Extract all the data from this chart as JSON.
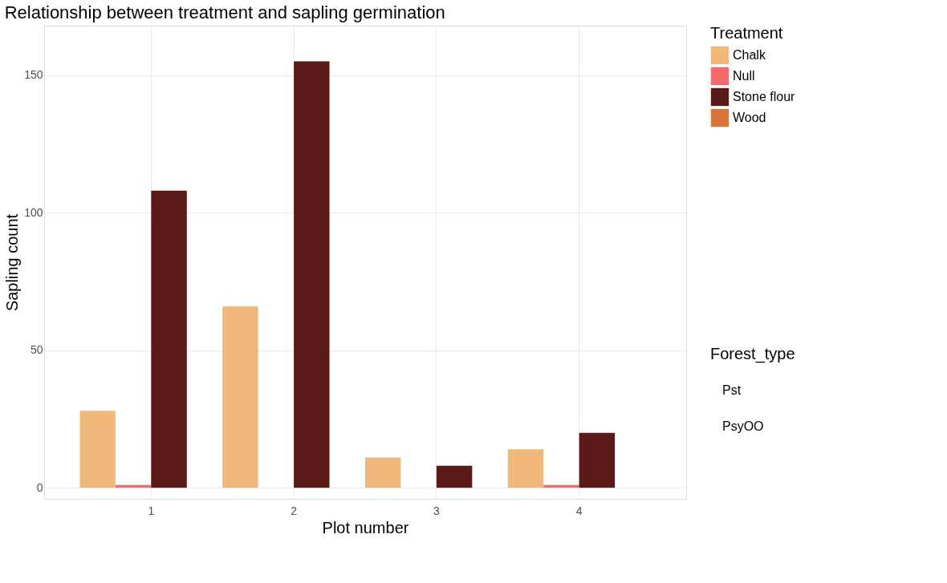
{
  "chart_data": {
    "type": "bar",
    "title": "Relationship between treatment and sapling germination",
    "xlabel": "Plot number",
    "ylabel": "Sapling count",
    "legend_title": "Treatment",
    "categories": [
      "1",
      "2",
      "3",
      "4"
    ],
    "series": [
      {
        "name": "Chalk",
        "color": "#f0b97a",
        "values": [
          28,
          66,
          11,
          14
        ]
      },
      {
        "name": "Null",
        "color": "#f8696b",
        "values": [
          1,
          null,
          null,
          1
        ]
      },
      {
        "name": "Stone flour",
        "color": "#5a1a17",
        "values": [
          108,
          155,
          8,
          20
        ]
      },
      {
        "name": "Wood",
        "color": "#d9753a",
        "values": [
          null,
          null,
          null,
          null
        ]
      }
    ],
    "ylim": [
      -4,
      168
    ],
    "yticks": [
      0,
      50,
      100,
      150
    ],
    "grid": true,
    "legend": "right",
    "annotations": [
      "Forest_type",
      "Pst",
      "PsyOO"
    ]
  }
}
